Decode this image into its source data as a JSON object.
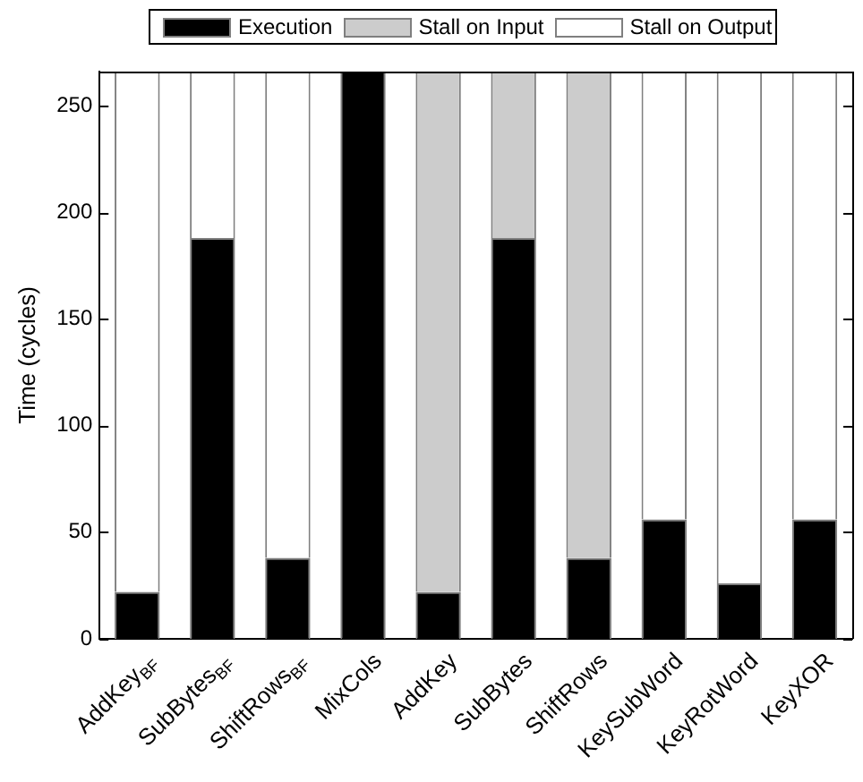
{
  "chart_data": {
    "type": "bar",
    "stacked": true,
    "ylabel": "Time (cycles)",
    "categories": [
      "AddKey$_{BF}$",
      "SubBytes$_{BF}$",
      "ShiftRows$_{BF}$",
      "MixCols",
      "AddKey",
      "SubBytes",
      "ShiftRows",
      "KeySubWord",
      "KeyRotWord",
      "KeyXOR"
    ],
    "series": [
      {
        "name": "Execution",
        "color": "#000000",
        "values": [
          22,
          188,
          38,
          266,
          22,
          188,
          38,
          56,
          26,
          56
        ]
      },
      {
        "name": "Stall on Input",
        "color": "#cccccc",
        "values": [
          0,
          0,
          0,
          0,
          244,
          78,
          228,
          0,
          0,
          0
        ]
      },
      {
        "name": "Stall on Output",
        "color": "#ffffff",
        "values": [
          244,
          78,
          228,
          0,
          0,
          0,
          0,
          210,
          240,
          210
        ]
      }
    ],
    "ylim": [
      0,
      266
    ],
    "yticks": [
      0,
      50,
      100,
      150,
      200,
      250
    ],
    "grid": false,
    "legend": "top"
  }
}
